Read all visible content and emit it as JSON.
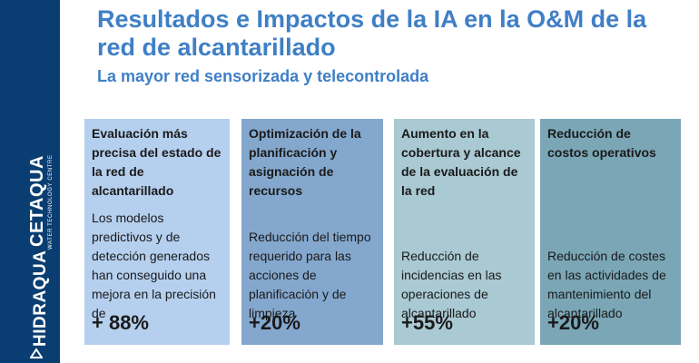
{
  "sidebar": {
    "brand_primary": "CETAQUA",
    "brand_primary_sub": "WATER TECHNOLOGY CENTRE",
    "brand_secondary": "HIDRAQUA",
    "color": "#0a3e72"
  },
  "header": {
    "title": "Resultados e Impactos de la IA en la O&M de la red de alcantarillado",
    "subtitle": "La mayor red sensorizada y telecontrolada",
    "accent_color": "#3f7fc6"
  },
  "cards": [
    {
      "heading": "Evaluación más precisa del estado de la red de alcantarillado",
      "description": "Los modelos predictivos y de detección generados han conseguido una mejora en la precisión de",
      "value": "+ 88%",
      "color": "#b5cfee"
    },
    {
      "heading": "Optimización de la planificación y asignación de recursos",
      "description": "Reducción del tiempo requerido para las acciones de planificación y de limpieza",
      "value": "+20%",
      "color": "#84a7cd"
    },
    {
      "heading": "Aumento en la cobertura y alcance de la evaluación de la red",
      "description": "Reducción de incidencias en las operaciones de alcantarillado",
      "value": "+55%",
      "color": "#a9c9d3"
    },
    {
      "heading": "Reducción de costos operativos",
      "description": "Reducción de costes en las actividades de mantenimiento del alcantarillado",
      "value": "+20%",
      "color": "#7aa6b6"
    }
  ]
}
